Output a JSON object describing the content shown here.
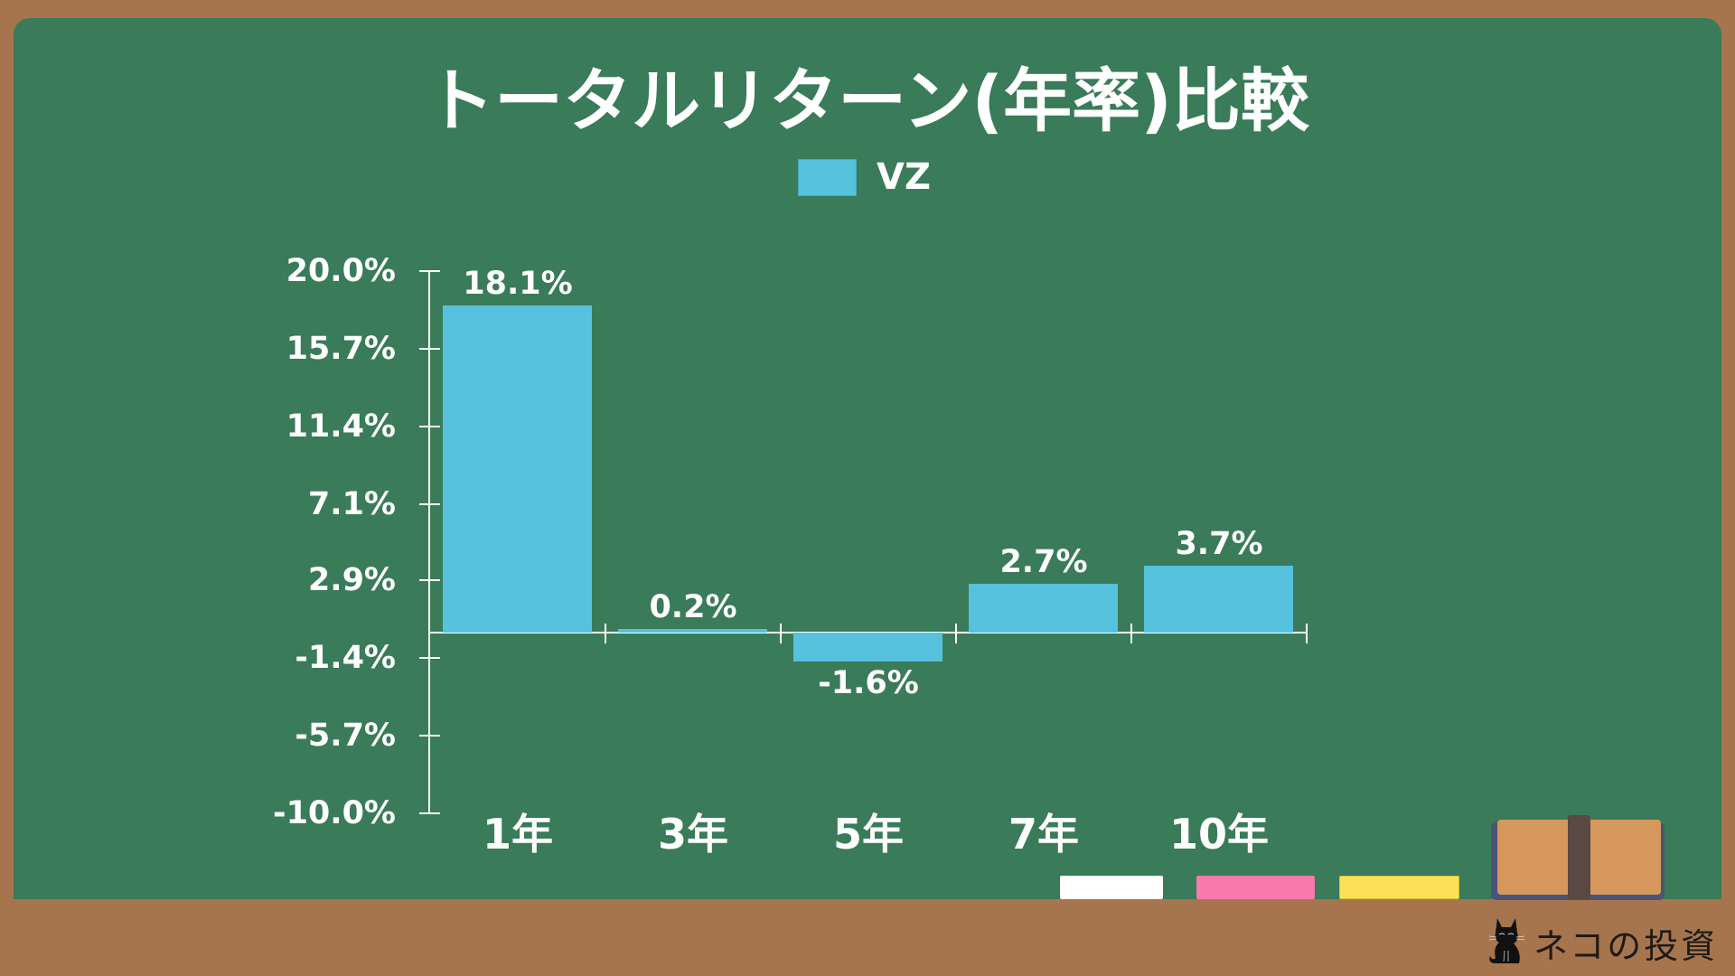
{
  "title": "トータルリターン(年率)比較",
  "legend": {
    "label": "VZ",
    "color": "#56c2dd"
  },
  "y_axis": {
    "ticks": [
      "20.0%",
      "15.7%",
      "11.4%",
      "7.1%",
      "2.9%",
      "-1.4%",
      "-5.7%",
      "-10.0%"
    ]
  },
  "bars": [
    {
      "category": "1年",
      "value": 18.1,
      "label": "18.1%"
    },
    {
      "category": "3年",
      "value": 0.2,
      "label": "0.2%"
    },
    {
      "category": "5年",
      "value": -1.6,
      "label": "-1.6%"
    },
    {
      "category": "7年",
      "value": 2.7,
      "label": "2.7%"
    },
    {
      "category": "10年",
      "value": 3.7,
      "label": "3.7%"
    }
  ],
  "colors": {
    "board": "#3a7b59",
    "frame": "#a6754d",
    "bar": "#56c2dd",
    "chalk_white": "#ffffff",
    "chalk_pink": "#f87aad",
    "chalk_yellow": "#fde055"
  },
  "brand": {
    "text": "ネコの投資",
    "icon": "cat-icon"
  },
  "chart_data": {
    "type": "bar",
    "title": "トータルリターン(年率)比較",
    "categories": [
      "1年",
      "3年",
      "5年",
      "7年",
      "10年"
    ],
    "series": [
      {
        "name": "VZ",
        "values": [
          18.1,
          0.2,
          -1.6,
          2.7,
          3.7
        ]
      }
    ],
    "xlabel": "",
    "ylabel": "",
    "ylim": [
      -10.0,
      20.0
    ],
    "yticks": [
      20.0,
      15.7,
      11.4,
      7.1,
      2.9,
      -1.4,
      -5.7,
      -10.0
    ],
    "legend_position": "top",
    "grid": false,
    "data_labels": true,
    "units": "%"
  }
}
